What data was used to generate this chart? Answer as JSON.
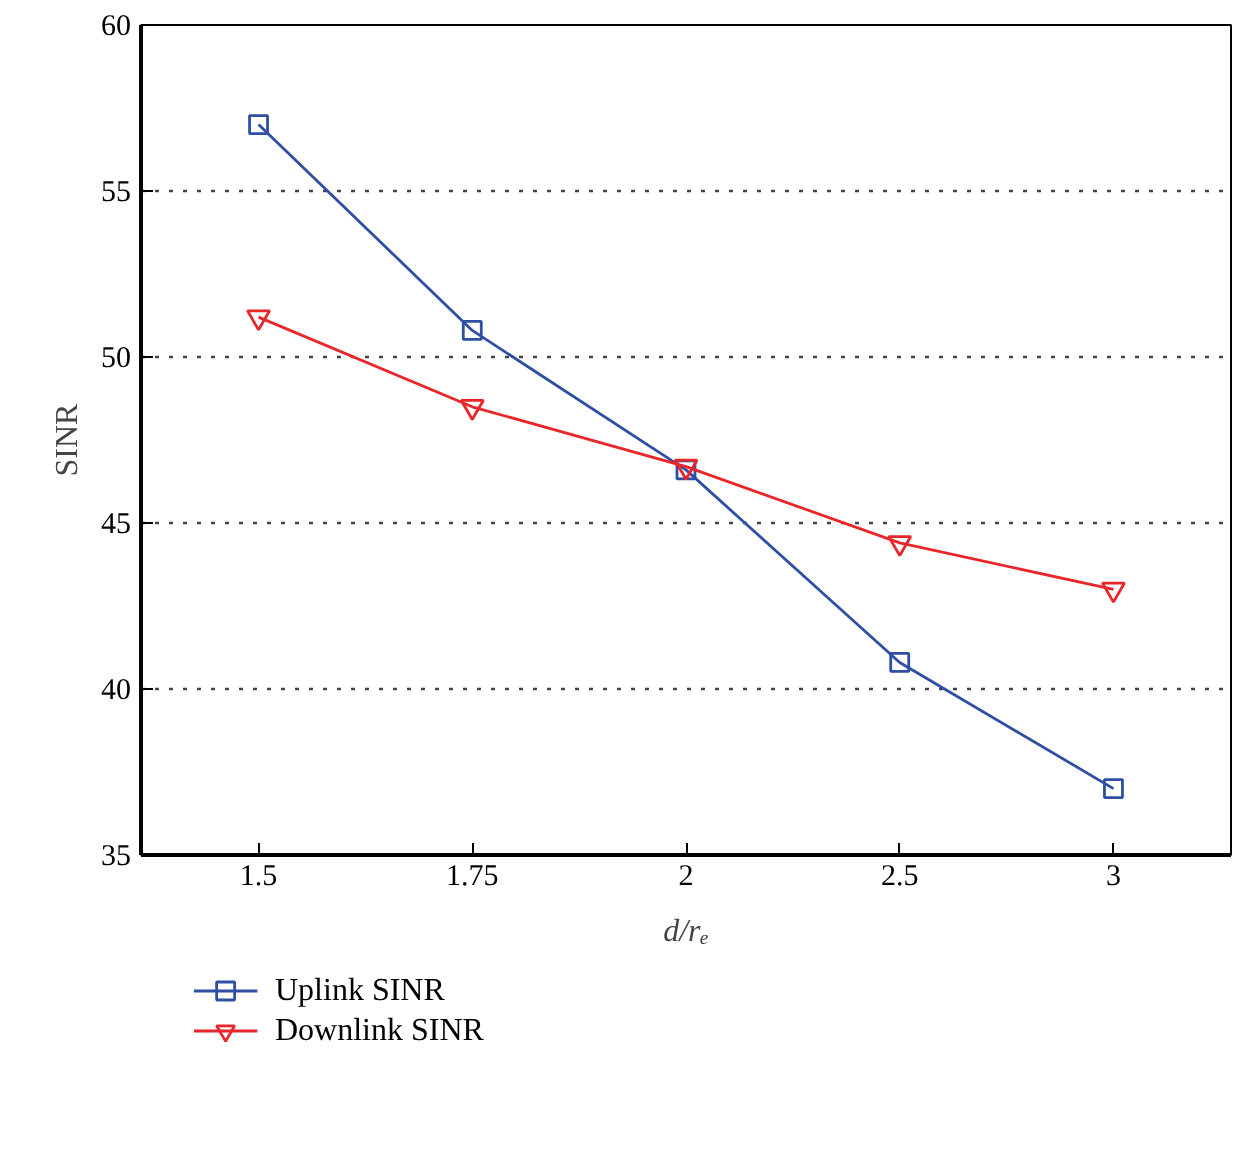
{
  "chart_data": {
    "type": "line",
    "xlabel": "d/rₑ",
    "ylabel": "SINR",
    "categories": [
      "1.5",
      "1.75",
      "2",
      "2.5",
      "3"
    ],
    "series": [
      {
        "name": "Uplink SINR",
        "color": "#2e4fa3",
        "marker": "square",
        "values": [
          57.0,
          50.8,
          46.6,
          40.8,
          37.0
        ]
      },
      {
        "name": "Downlink SINR",
        "color": "#e8262b",
        "marker": "triangle",
        "values": [
          51.2,
          48.5,
          46.7,
          44.4,
          43.0
        ]
      }
    ],
    "ylim": [
      35,
      60
    ],
    "yticks": [
      35,
      40,
      45,
      50,
      55,
      60
    ],
    "grid": "y",
    "legend": "bottom left",
    "line_style": "solid"
  }
}
